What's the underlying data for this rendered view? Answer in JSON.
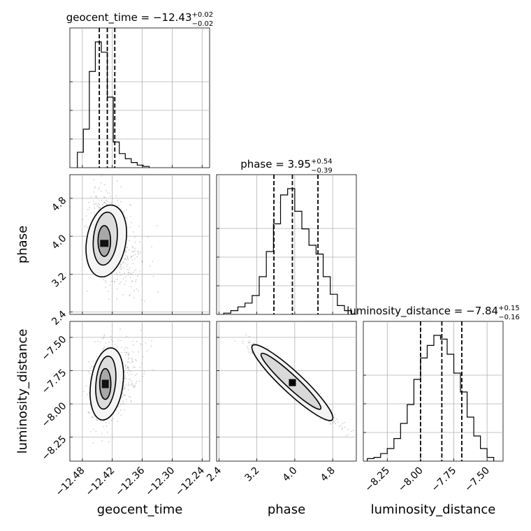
{
  "chart_data": {
    "type": "corner",
    "parameters": [
      {
        "name": "geocent_time",
        "title_text": "geocent_time = −12.43",
        "median_label": "−12.43",
        "plus": "+0.02",
        "minus": "−0.02",
        "median": -12.43,
        "q_lo": -12.446,
        "q_hi": -12.415,
        "ticks": [
          -12.48,
          -12.42,
          -12.36,
          -12.3,
          -12.24
        ],
        "tick_labels": [
          "−12.48",
          "−12.42",
          "−12.36",
          "−12.30",
          "−12.24"
        ],
        "range": [
          -12.505,
          -12.225
        ],
        "hist_edges": [
          -12.49,
          -12.478,
          -12.466,
          -12.454,
          -12.442,
          -12.43,
          -12.418,
          -12.406,
          -12.394,
          -12.382,
          -12.37,
          -12.358,
          -12.346
        ],
        "hist_counts": [
          0.12,
          0.3,
          0.75,
          0.98,
          0.9,
          0.55,
          0.2,
          0.11,
          0.07,
          0.04,
          0.02,
          0.01
        ]
      },
      {
        "name": "phase",
        "title_text": "phase = 3.95",
        "median_label": "3.95",
        "plus": "+0.54",
        "minus": "−0.39",
        "median": 3.95,
        "q_lo": 3.56,
        "q_hi": 4.49,
        "ticks": [
          2.4,
          3.2,
          4.0,
          4.8
        ],
        "tick_labels": [
          "2.4",
          "3.2",
          "4.0",
          "4.8"
        ],
        "range": [
          2.35,
          5.3
        ],
        "hist_edges": [
          2.5,
          2.65,
          2.8,
          2.95,
          3.1,
          3.25,
          3.4,
          3.55,
          3.7,
          3.85,
          4.0,
          4.15,
          4.3,
          4.45,
          4.6,
          4.75,
          4.9,
          5.05,
          5.2
        ],
        "hist_counts": [
          0.01,
          0.03,
          0.06,
          0.09,
          0.15,
          0.3,
          0.5,
          0.72,
          0.95,
          1.0,
          0.82,
          0.68,
          0.55,
          0.48,
          0.3,
          0.16,
          0.07,
          0.03
        ]
      },
      {
        "name": "luminosity_distance",
        "title_text": "luminosity_distance = −7.84",
        "median_label": "−7.84",
        "plus": "+0.15",
        "minus": "−0.16",
        "median": -7.84,
        "q_lo": -8.0,
        "q_hi": -7.69,
        "ticks": [
          -8.25,
          -8.0,
          -7.75,
          -7.5
        ],
        "tick_labels": [
          "−8.25",
          "−8.00",
          "−7.75",
          "−7.50"
        ],
        "range": [
          -8.43,
          -7.38
        ],
        "hist_edges": [
          -8.4,
          -8.35,
          -8.3,
          -8.25,
          -8.2,
          -8.15,
          -8.1,
          -8.05,
          -8.0,
          -7.95,
          -7.9,
          -7.85,
          -7.8,
          -7.75,
          -7.7,
          -7.65,
          -7.6,
          -7.55,
          -7.5,
          -7.45
        ],
        "hist_counts": [
          0.02,
          0.03,
          0.06,
          0.1,
          0.18,
          0.3,
          0.45,
          0.65,
          0.82,
          0.92,
          1.0,
          0.97,
          0.85,
          0.7,
          0.55,
          0.35,
          0.2,
          0.1,
          0.03
        ]
      }
    ],
    "axis_labels": [
      "geocent_time",
      "phase",
      "luminosity_distance"
    ],
    "grid": true
  }
}
